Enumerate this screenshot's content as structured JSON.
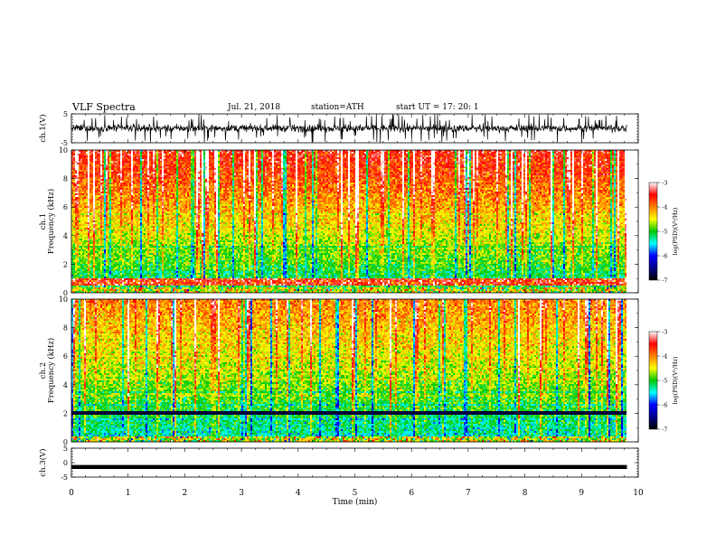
{
  "header": {
    "title": "VLF  Spectra",
    "date": "Jul.  21, 2018",
    "station": "station=ATH",
    "start": "start  UT  =     17: 20: 1"
  },
  "colors": {
    "colormap": [
      "#000000",
      "#00008b",
      "#0000ff",
      "#00ffff",
      "#00c800",
      "#ffff00",
      "#ff8000",
      "#ff0000",
      "#ffffff"
    ],
    "background": "#ffffff",
    "trace": "#000000"
  },
  "chart_data": [
    {
      "type": "line",
      "id": "ch1-waveform",
      "ylabel": "ch.1(V)",
      "ylim": [
        -5,
        5
      ],
      "yticks": [
        "5",
        "-5"
      ],
      "xlim": [
        0,
        10
      ],
      "description_values": "broadband noise, amplitude roughly ±1.5 V with spikes to ±5 V, record length ~9.8 min"
    },
    {
      "type": "heatmap",
      "id": "ch1-spectrogram",
      "ylabel": "ch.1\nFrequency  (kHz)",
      "ylim": [
        0,
        10
      ],
      "yticks": [
        "0",
        "2",
        "4",
        "6",
        "8",
        "10"
      ],
      "xlim": [
        0,
        10
      ],
      "colorbar": {
        "label": "log(PSD)(V²/Hz)",
        "range": [
          -7,
          -3
        ],
        "ticks": [
          "-3",
          "-4",
          "-5",
          "-6",
          "-7"
        ]
      },
      "features": {
        "strong_band_khz": [
          0.4,
          1.0
        ],
        "high_freq_level": -3.5,
        "low_freq_level": -5.5
      }
    },
    {
      "type": "heatmap",
      "id": "ch2-spectrogram",
      "ylabel": "ch.2\nFrequency  (kHz)",
      "ylim": [
        0,
        10
      ],
      "yticks": [
        "0",
        "2",
        "4",
        "6",
        "8",
        "10"
      ],
      "xlim": [
        0,
        10
      ],
      "colorbar": {
        "label": "log(PSD)(V²/Hz)",
        "range": [
          -7,
          -3
        ],
        "ticks": [
          "-3",
          "-4",
          "-5",
          "-6",
          "-7"
        ]
      },
      "features": {
        "strong_line_khz": 2.0,
        "high_freq_level": -4.0,
        "low_freq_level": -5.5
      }
    },
    {
      "type": "line",
      "id": "ch3-waveform",
      "ylabel": "ch.3(V)",
      "ylim": [
        -5,
        5
      ],
      "yticks": [
        "5",
        "0",
        "-5"
      ],
      "xlim": [
        0,
        10
      ],
      "level": -1.5
    }
  ],
  "xaxis": {
    "label": "Time  (min)",
    "ticks": [
      "0",
      "1",
      "2",
      "3",
      "4",
      "5",
      "6",
      "7",
      "8",
      "9",
      "10"
    ],
    "data_end": 9.8
  }
}
